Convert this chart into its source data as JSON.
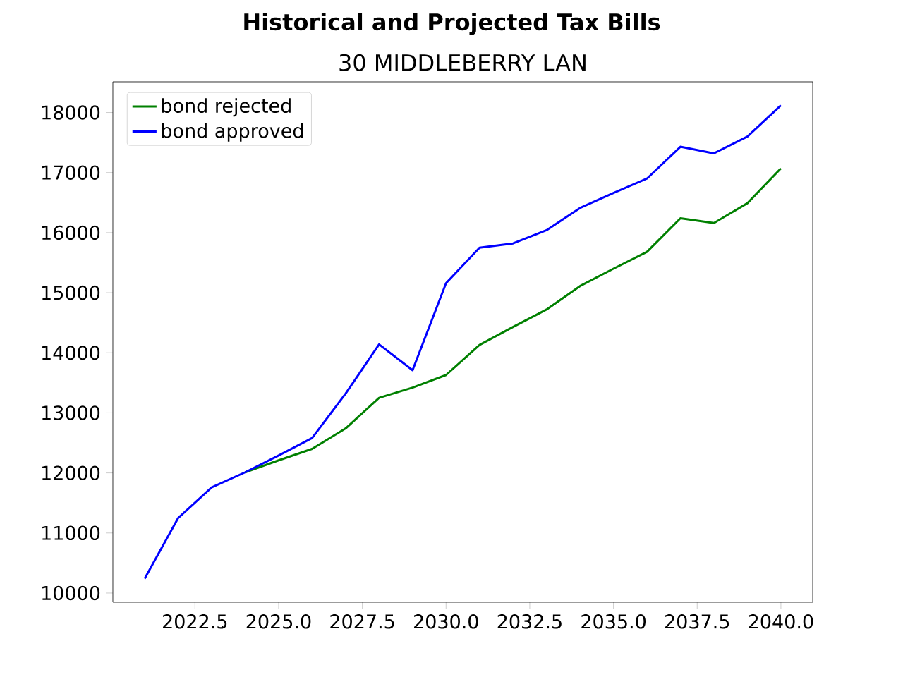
{
  "chart_data": {
    "type": "line",
    "title": "Historical and Projected Tax Bills",
    "subtitle": "30 MIDDLEBERRY LAN",
    "x": [
      2021,
      2022,
      2023,
      2024,
      2025,
      2026,
      2027,
      2028,
      2029,
      2030,
      2031,
      2032,
      2033,
      2034,
      2035,
      2036,
      2037,
      2038,
      2039,
      2040
    ],
    "series": [
      {
        "name": "bond rejected",
        "color": "#008000",
        "values": [
          null,
          null,
          null,
          12010,
          12210,
          12400,
          12740,
          13250,
          13420,
          13630,
          14130,
          14430,
          14720,
          15110,
          15400,
          15680,
          16240,
          16160,
          16490,
          17070
        ]
      },
      {
        "name": "bond approved",
        "color": "#0000ff",
        "values": [
          10240,
          11250,
          11760,
          12010,
          12290,
          12580,
          13320,
          14140,
          13710,
          15160,
          15750,
          15820,
          16040,
          16410,
          16660,
          16900,
          17430,
          17320,
          17600,
          18120
        ]
      }
    ],
    "xlim": [
      2020.05,
      2040.95
    ],
    "xticks": [
      2022.5,
      {
        "value": 2025,
        "label": "2025.0"
      },
      2027.5,
      {
        "value": 2030,
        "label": "2030.0"
      },
      2032.5,
      {
        "value": 2035,
        "label": "2035.0"
      },
      2037.5,
      {
        "value": 2040,
        "label": "2040.0"
      }
    ],
    "ylim": [
      9847,
      18511
    ],
    "yticks": [
      10000,
      11000,
      12000,
      13000,
      14000,
      15000,
      16000,
      17000,
      18000
    ],
    "legend": "top left",
    "grid": false,
    "marker": "none",
    "line_style": "solid"
  }
}
